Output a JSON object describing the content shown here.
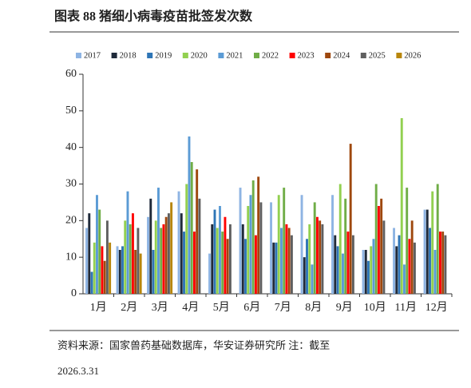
{
  "chart_data": {
    "type": "bar",
    "title": "图表 88 猪细小病毒疫苗批签发次数",
    "categories": [
      "1月",
      "2月",
      "3月",
      "4月",
      "5月",
      "6月",
      "7月",
      "8月",
      "9月",
      "10月",
      "11月",
      "12月"
    ],
    "series": [
      {
        "name": "2017",
        "color": "#8eb4e3",
        "values": [
          18,
          13,
          21,
          28,
          11,
          29,
          25,
          27,
          27,
          12,
          18,
          23
        ]
      },
      {
        "name": "2018",
        "color": "#1f2a3a",
        "values": [
          22,
          12,
          26,
          22,
          19,
          19,
          14,
          10,
          16,
          12,
          13,
          23
        ]
      },
      {
        "name": "2019",
        "color": "#2e75b6",
        "values": [
          6,
          13,
          12,
          17,
          23,
          15,
          14,
          15,
          13,
          9,
          16,
          18
        ]
      },
      {
        "name": "2020",
        "color": "#92d050",
        "values": [
          14,
          20,
          20,
          30,
          18,
          24,
          27,
          19,
          30,
          13,
          48,
          28
        ]
      },
      {
        "name": "2021",
        "color": "#5b9bd5",
        "values": [
          27,
          28,
          29,
          43,
          24,
          27,
          18,
          8,
          11,
          15,
          8,
          12
        ]
      },
      {
        "name": "2022",
        "color": "#70ad47",
        "values": [
          23,
          19,
          18,
          36,
          17,
          31,
          29,
          25,
          26,
          30,
          29,
          30
        ]
      },
      {
        "name": "2023",
        "color": "#ff0000",
        "values": [
          13,
          22,
          19,
          17,
          21,
          16,
          19,
          21,
          17,
          24,
          15,
          17
        ]
      },
      {
        "name": "2024",
        "color": "#9e480e",
        "values": [
          9,
          12,
          21,
          34,
          15,
          32,
          18,
          20,
          41,
          26,
          20,
          17
        ]
      },
      {
        "name": "2025",
        "color": "#5f5f5f",
        "values": [
          20,
          18,
          22,
          26,
          19,
          25,
          16,
          19,
          16,
          20,
          14,
          16
        ]
      },
      {
        "name": "2026",
        "color": "#b8860b",
        "values": [
          14,
          11,
          25,
          null,
          null,
          null,
          null,
          null,
          null,
          null,
          null,
          null
        ]
      }
    ],
    "ylim": [
      0,
      60
    ],
    "yticks": [
      0,
      10,
      20,
      30,
      40,
      50,
      60
    ],
    "grid": false,
    "legend": "top"
  },
  "footer": {
    "source": "资料来源：国家兽药基础数据库，华安证券研究所 注：截至",
    "date": "2026.3.31"
  }
}
